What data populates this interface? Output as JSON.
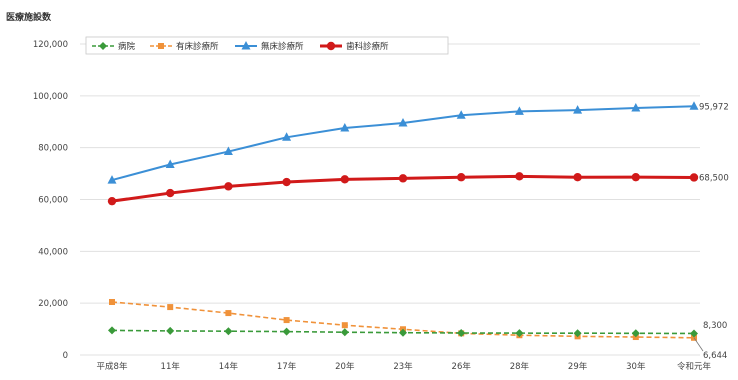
{
  "chart_data": {
    "type": "line",
    "ylabel": "医療施設数",
    "ylim": [
      0,
      120000
    ],
    "yticks": [
      "0",
      "20,000",
      "40,000",
      "60,000",
      "80,000",
      "100,000",
      "120,000"
    ],
    "yticks_values": [
      0,
      20000,
      40000,
      60000,
      80000,
      100000,
      120000
    ],
    "categories": [
      "平成8年",
      "11年",
      "14年",
      "17年",
      "20年",
      "23年",
      "26年",
      "28年",
      "29年",
      "30年",
      "令和元年"
    ],
    "grid": true,
    "legend_position": "top-left",
    "series": [
      {
        "name": "病院",
        "color": "#3a9a3a",
        "dash": "dashed",
        "marker": "diamond",
        "values": [
          9490,
          9286,
          9187,
          9026,
          8794,
          8605,
          8493,
          8442,
          8412,
          8372,
          8300
        ]
      },
      {
        "name": "有床診療所",
        "color": "#f0923a",
        "dash": "dashed",
        "marker": "square",
        "values": [
          20452,
          18487,
          16178,
          13477,
          11500,
          9934,
          8355,
          7629,
          7202,
          6934,
          6644
        ]
      },
      {
        "name": "無床診療所",
        "color": "#3b8fd6",
        "dash": "solid",
        "marker": "triangle",
        "values": [
          67500,
          73500,
          78500,
          84000,
          87600,
          89500,
          92500,
          94000,
          94500,
          95300,
          95972
        ]
      },
      {
        "name": "歯科診療所",
        "color": "#d11a1a",
        "dash": "solid",
        "marker": "circle",
        "values": [
          59357,
          62484,
          65073,
          66732,
          67779,
          68156,
          68592,
          68940,
          68609,
          68613,
          68500
        ]
      }
    ],
    "end_labels": [
      {
        "series": "無床診療所",
        "text": "95,972"
      },
      {
        "series": "歯科診療所",
        "text": "68,500"
      },
      {
        "series": "病院",
        "text": "8,300"
      },
      {
        "series": "有床診療所",
        "text": "6,644"
      }
    ]
  }
}
